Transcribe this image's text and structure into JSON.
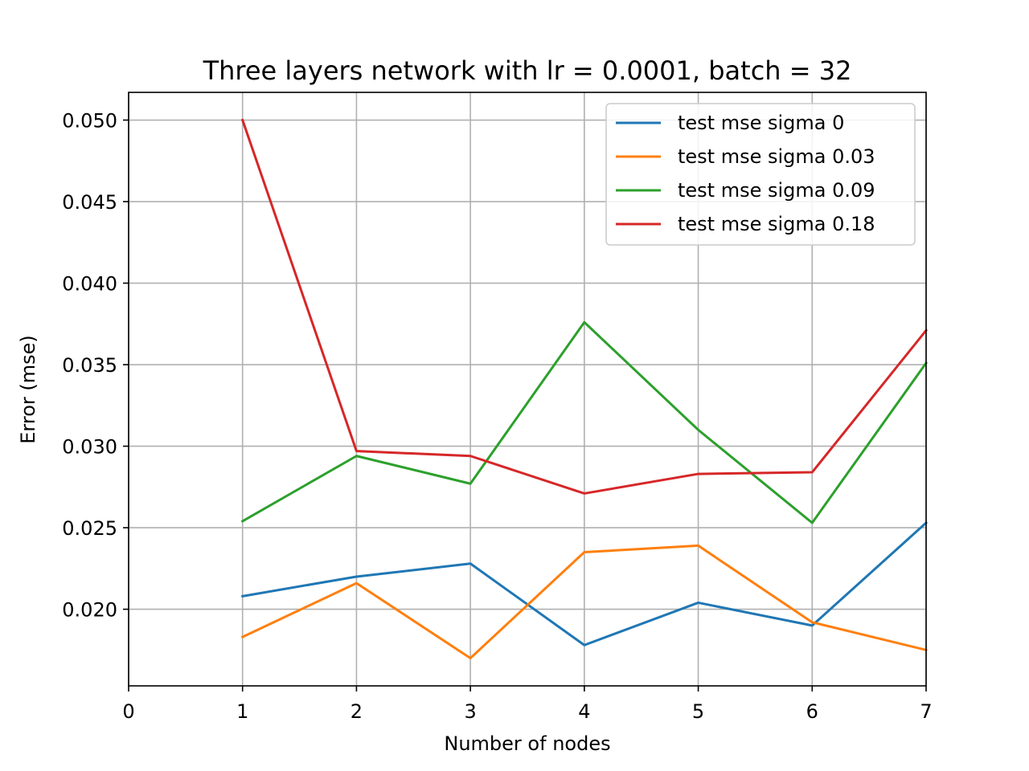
{
  "chart_data": {
    "type": "line",
    "title": "Three layers network with lr = 0.0001, batch = 32",
    "xlabel": "Number of nodes",
    "ylabel": "Error (mse)",
    "xlim": [
      0,
      7
    ],
    "ylim": [
      0.0153,
      0.0517
    ],
    "grid": true,
    "legend_position": "top-right",
    "x_ticks": [
      0,
      1,
      2,
      3,
      4,
      5,
      6,
      7
    ],
    "x_tick_labels": [
      "0",
      "1",
      "2",
      "3",
      "4",
      "5",
      "6",
      "7"
    ],
    "y_ticks": [
      0.02,
      0.025,
      0.03,
      0.035,
      0.04,
      0.045,
      0.05
    ],
    "y_tick_labels": [
      "0.020",
      "0.025",
      "0.030",
      "0.035",
      "0.040",
      "0.045",
      "0.050"
    ],
    "x": [
      1,
      2,
      3,
      4,
      5,
      6,
      7
    ],
    "series": [
      {
        "name": "test mse sigma 0",
        "color": "#1f77b4",
        "values": [
          0.0208,
          0.022,
          0.0228,
          0.0178,
          0.0204,
          0.019,
          0.0253
        ]
      },
      {
        "name": "test mse sigma 0.03",
        "color": "#ff7f0e",
        "values": [
          0.0183,
          0.0216,
          0.017,
          0.0235,
          0.0239,
          0.0192,
          0.0175
        ]
      },
      {
        "name": "test mse sigma 0.09",
        "color": "#2ca02c",
        "values": [
          0.0254,
          0.0294,
          0.0277,
          0.0376,
          0.031,
          0.0253,
          0.0351
        ]
      },
      {
        "name": "test mse sigma 0.18",
        "color": "#d62728",
        "values": [
          0.05,
          0.0297,
          0.0294,
          0.0271,
          0.0283,
          0.0284,
          0.0371
        ]
      }
    ]
  }
}
